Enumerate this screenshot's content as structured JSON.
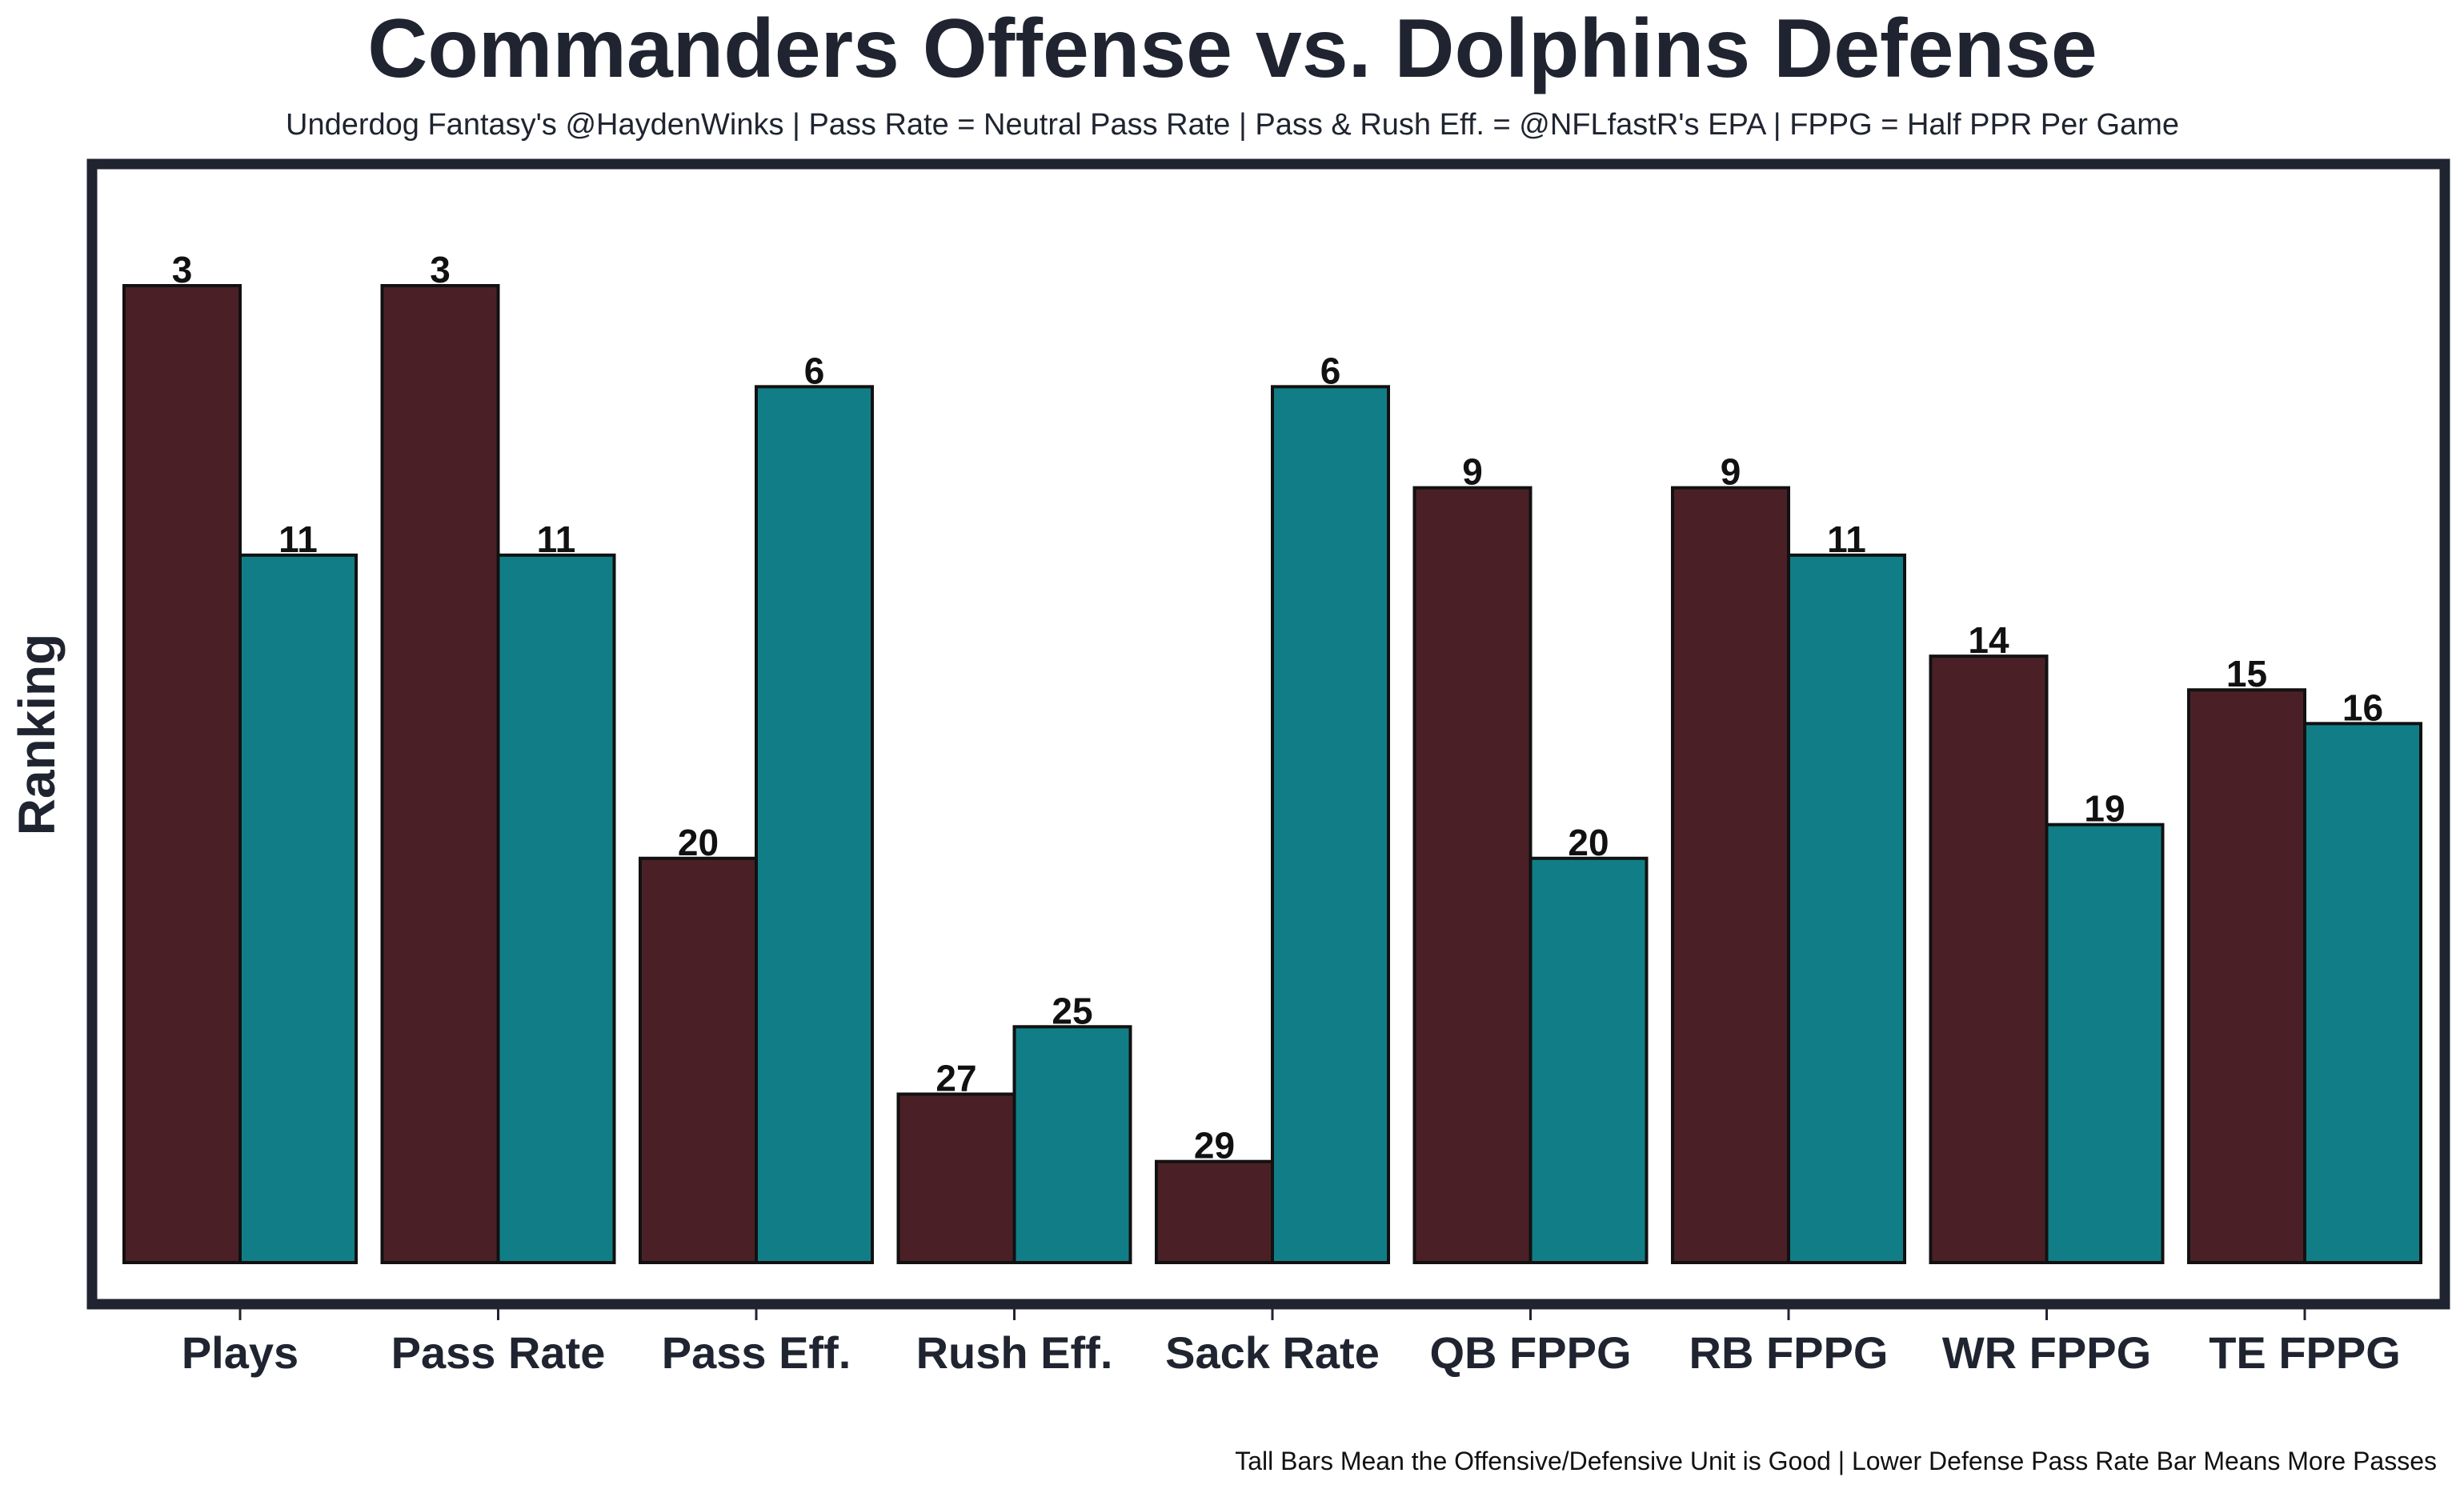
{
  "chart_data": {
    "type": "bar",
    "title": "Commanders Offense vs. Dolphins Defense",
    "subtitle": "Underdog Fantasy's @HaydenWinks | Pass Rate = Neutral Pass Rate | Pass & Rush Eff. = @NFLfastR's EPA | FPPG = Half PPR Per Game",
    "xlabel": "",
    "ylabel": "Ranking",
    "footer": "Tall Bars Mean the Offensive/Defensive Unit is Good | Lower Defense Pass Rate Bar Means More Passes",
    "categories": [
      "Plays",
      "Pass Rate",
      "Pass Eff.",
      "Rush Eff.",
      "Sack Rate",
      "QB FPPG",
      "RB FPPG",
      "WR FPPG",
      "TE FPPG"
    ],
    "series": [
      {
        "values": [
          3,
          3,
          20,
          27,
          29,
          9,
          9,
          14,
          15
        ],
        "color": "#4a2026"
      },
      {
        "values": [
          11,
          11,
          6,
          25,
          6,
          20,
          11,
          19,
          16
        ],
        "color": "#117e87"
      }
    ],
    "rank_scale": {
      "note": "bar height grows as rank number gets smaller (better)",
      "worst_rank": 32,
      "best_rank": 1
    },
    "grid": false,
    "legend": "none",
    "frame_color": "#1f2430"
  }
}
